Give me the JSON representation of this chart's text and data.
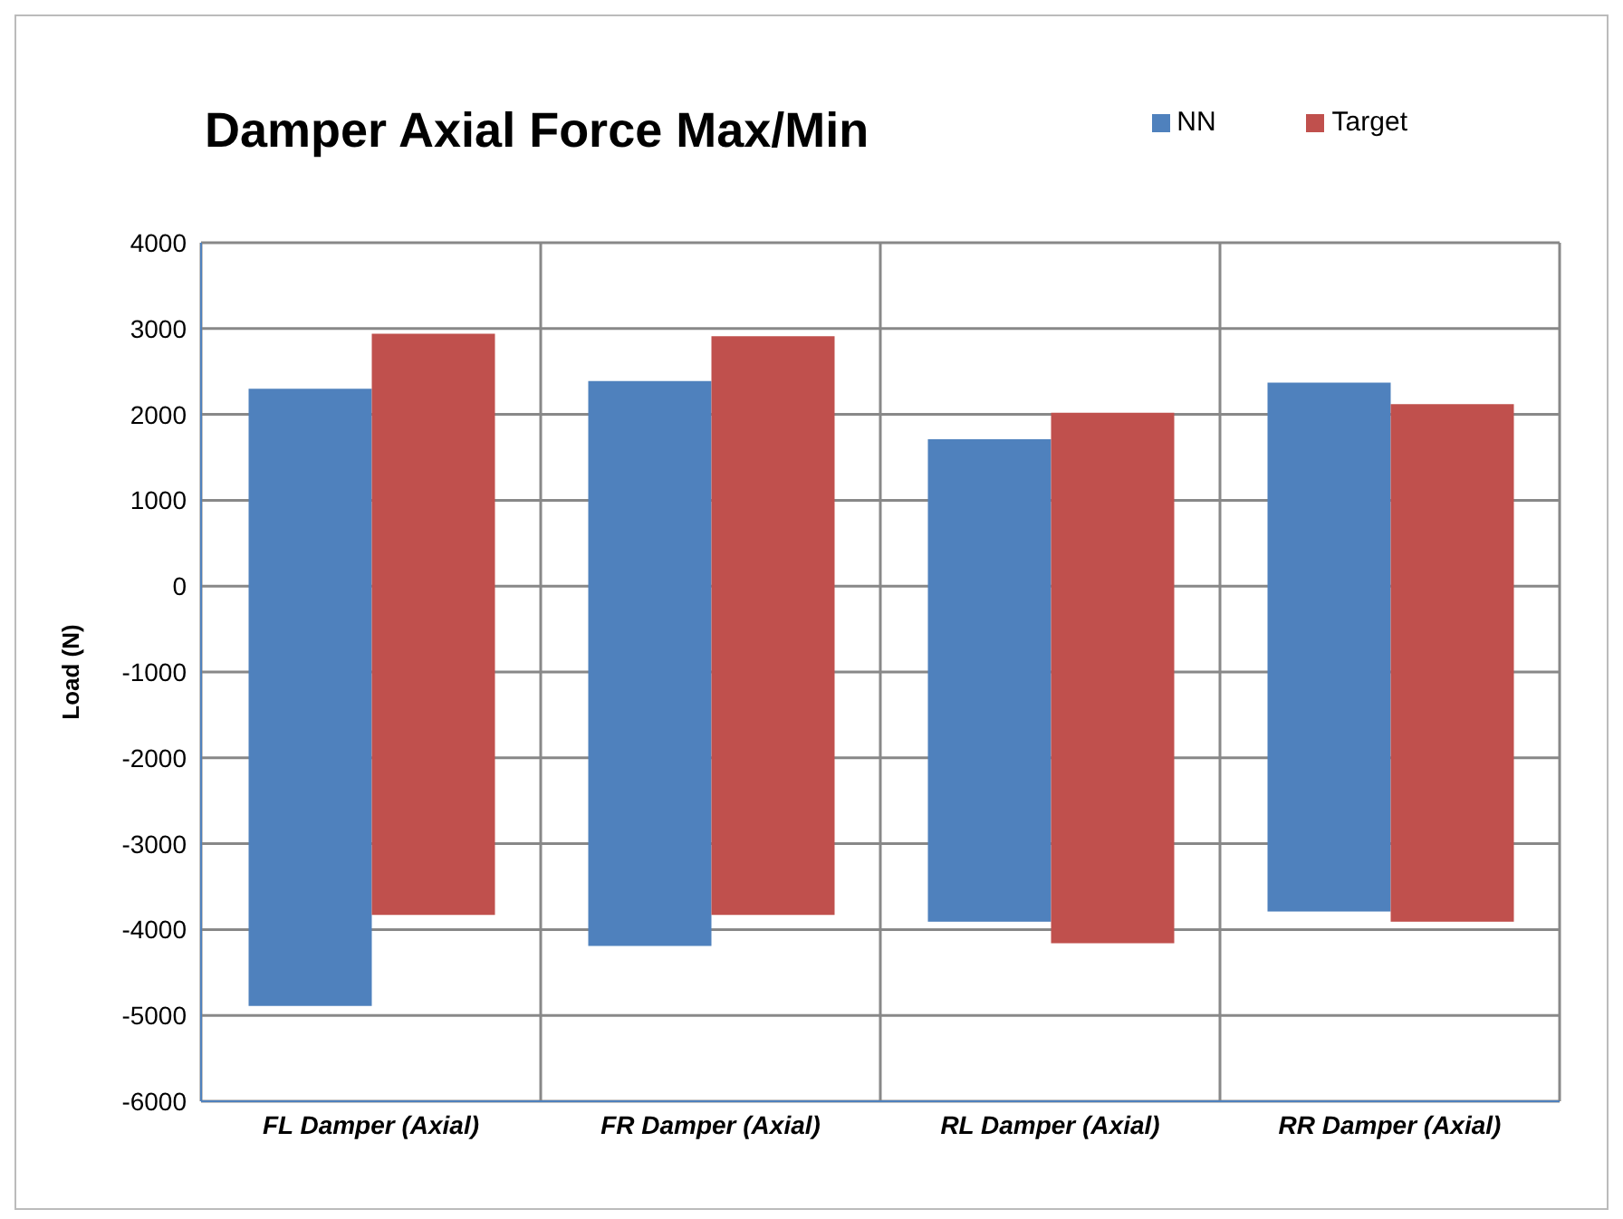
{
  "chart_data": {
    "type": "bar",
    "title": "Damper Axial Force Max/Min",
    "ylabel": "Load (N)",
    "categories": [
      "FL Damper (Axial)",
      "FR Damper (Axial)",
      "RL Damper (Axial)",
      "RR Damper (Axial)"
    ],
    "series": [
      {
        "name": "NN",
        "color": "#4f81bd",
        "base": [
          -4890,
          -4190,
          -3910,
          -3790
        ],
        "values": [
          7190,
          6580,
          5620,
          6160
        ]
      },
      {
        "name": "Target",
        "color": "#c0504d",
        "base": [
          -3830,
          -3830,
          -4160,
          -3910
        ],
        "values": [
          6770,
          6740,
          6180,
          6030
        ]
      }
    ],
    "ylim": [
      -6000,
      4000
    ],
    "yticks": [
      -6000,
      -5000,
      -4000,
      -3000,
      -2000,
      -1000,
      0,
      1000,
      2000,
      3000,
      4000
    ],
    "grid": true,
    "legend": "top right"
  }
}
